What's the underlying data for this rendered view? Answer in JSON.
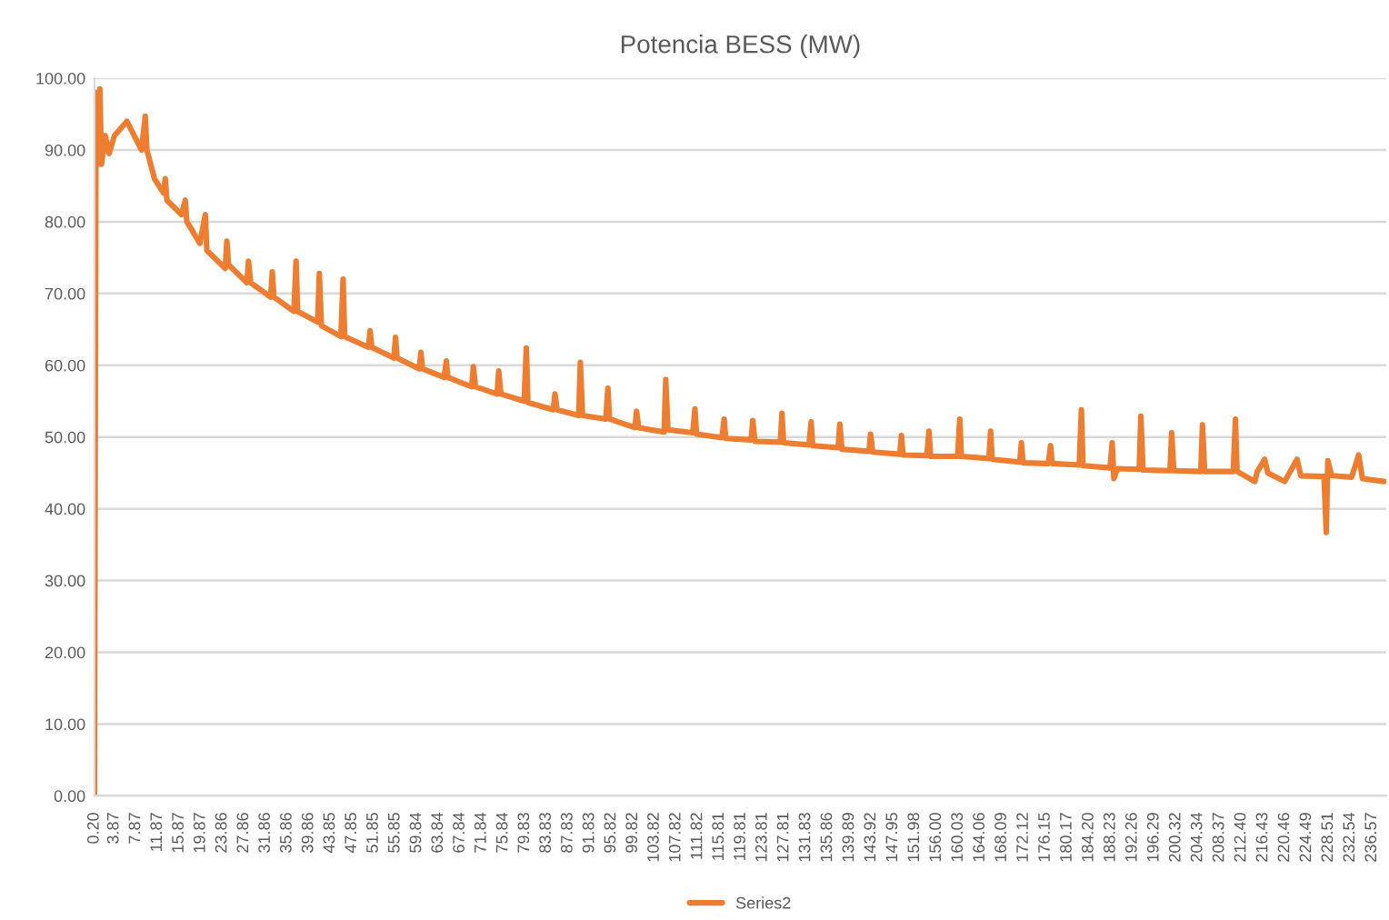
{
  "chart_data": {
    "type": "line",
    "title": "Potencia BESS (MW)",
    "x": [
      0.2,
      0.5,
      0.9,
      1.2,
      1.5,
      2.2,
      2.9,
      3.9,
      6.2,
      8.9,
      9.6,
      9.9,
      11.3,
      13.0,
      13.3,
      13.6,
      16.3,
      17.0,
      17.3,
      19.7,
      20.7,
      21.0,
      24.4,
      24.7,
      25.0,
      28.4,
      28.7,
      29.1,
      32.8,
      33.1,
      33.4,
      37.1,
      37.5,
      37.8,
      41.5,
      41.8,
      42.2,
      45.8,
      46.2,
      46.5,
      50.9,
      51.2,
      51.5,
      55.6,
      55.9,
      56.2,
      60.3,
      60.6,
      60.9,
      64.9,
      65.3,
      65.6,
      70.0,
      70.3,
      70.7,
      74.7,
      75.0,
      75.4,
      79.7,
      80.1,
      80.4,
      85.1,
      85.4,
      85.8,
      89.8,
      90.1,
      90.5,
      94.8,
      95.2,
      95.5,
      100.2,
      100.5,
      100.9,
      105.6,
      105.9,
      106.3,
      110.9,
      111.3,
      111.6,
      116.3,
      116.7,
      117.0,
      121.7,
      122.0,
      122.4,
      127.1,
      127.4,
      127.7,
      132.4,
      132.8,
      133.1,
      137.8,
      138.1,
      138.5,
      143.5,
      143.8,
      144.2,
      149.2,
      149.5,
      149.8,
      154.2,
      154.6,
      154.9,
      159.9,
      160.3,
      160.6,
      165.7,
      166.0,
      166.3,
      171.4,
      171.7,
      172.0,
      176.7,
      177.1,
      177.4,
      182.4,
      182.8,
      183.1,
      188.1,
      188.5,
      188.8,
      189.5,
      193.5,
      193.8,
      194.2,
      199.2,
      199.5,
      199.9,
      204.9,
      205.2,
      205.6,
      210.9,
      211.3,
      211.6,
      214.9,
      215.3,
      216.7,
      217.3,
      220.4,
      221.0,
      222.7,
      223.4,
      227.7,
      228.1,
      228.4,
      229.1,
      232.8,
      234.1,
      234.8,
      238.8
    ],
    "series": [
      {
        "name": "Series2",
        "color": "#ed7d31",
        "values": [
          0,
          98,
          88,
          98.5,
          88,
          92,
          89.5,
          92,
          94,
          90,
          94.7,
          90,
          86,
          84,
          86,
          83,
          81,
          83,
          80,
          77,
          81,
          76,
          73.5,
          77.3,
          74,
          71.5,
          74.5,
          71.5,
          69.5,
          73,
          69.5,
          67.5,
          74.5,
          67.5,
          66,
          72.8,
          65.5,
          64,
          72,
          64,
          62.5,
          64.8,
          62.5,
          61,
          63.9,
          61,
          59.5,
          61.8,
          59.5,
          58.3,
          60.6,
          58.3,
          57,
          59.8,
          57,
          56,
          59.2,
          56,
          55,
          62.4,
          54.8,
          53.8,
          56,
          53.8,
          53,
          60.4,
          53,
          52.5,
          56.8,
          52.5,
          51.3,
          53.6,
          51.3,
          50.7,
          58,
          51,
          50.6,
          53.9,
          50.4,
          49.9,
          52.5,
          49.8,
          49.6,
          52.3,
          49.4,
          49.3,
          53.3,
          49.2,
          48.9,
          52.1,
          48.8,
          48.5,
          51.8,
          48.3,
          48.0,
          50.4,
          47.9,
          47.6,
          50.2,
          47.5,
          47.4,
          50.8,
          47.3,
          47.3,
          52.5,
          47.3,
          47.0,
          50.8,
          46.9,
          46.5,
          49.2,
          46.4,
          46.3,
          48.8,
          46.3,
          46.1,
          53.8,
          46.0,
          45.7,
          49.2,
          44.2,
          45.6,
          45.5,
          52.9,
          45.4,
          45.3,
          50.6,
          45.3,
          45.2,
          51.7,
          45.2,
          45.2,
          52.5,
          45.2,
          43.8,
          45.1,
          46.9,
          45.0,
          43.8,
          44.6,
          46.9,
          44.6,
          44.5,
          36.7,
          46.7,
          44.6,
          44.4,
          47.5,
          44.2,
          43.8
        ]
      }
    ],
    "xlim": [
      0.2,
      239.2
    ],
    "xticks": [
      {
        "value": 0.2,
        "label": "0.20"
      },
      3.87,
      7.87,
      11.87,
      15.87,
      19.87,
      23.86,
      27.86,
      31.86,
      35.86,
      39.86,
      43.85,
      47.85,
      51.85,
      55.85,
      59.84,
      63.84,
      67.84,
      71.84,
      75.84,
      79.83,
      83.83,
      87.83,
      91.83,
      95.82,
      99.82,
      103.82,
      107.82,
      111.82,
      115.81,
      119.81,
      123.81,
      127.81,
      131.83,
      135.86,
      139.89,
      143.92,
      147.95,
      151.98,
      {
        "value": 156,
        "label": "156.00"
      },
      160.03,
      164.06,
      168.09,
      172.12,
      176.15,
      180.17,
      {
        "value": 184.2,
        "label": "184.20"
      },
      188.23,
      192.26,
      196.29,
      200.32,
      204.34,
      208.37,
      {
        "value": 212.4,
        "label": "212.40"
      },
      216.43,
      220.46,
      224.49,
      228.51,
      232.54,
      236.57
    ],
    "ylim": [
      0,
      100
    ],
    "yticks": [
      {
        "value": 0,
        "label": "0.00"
      },
      {
        "value": 10,
        "label": "10.00"
      },
      {
        "value": 20,
        "label": "20.00"
      },
      {
        "value": 30,
        "label": "30.00"
      },
      {
        "value": 40,
        "label": "40.00"
      },
      {
        "value": 50,
        "label": "50.00"
      },
      {
        "value": 60,
        "label": "60.00"
      },
      {
        "value": 70,
        "label": "70.00"
      },
      {
        "value": 80,
        "label": "80.00"
      },
      {
        "value": 90,
        "label": "90.00"
      },
      {
        "value": 100,
        "label": "100.00"
      }
    ],
    "grid": "y",
    "legend": "bottom",
    "marker": "none",
    "line_style": "solid"
  }
}
